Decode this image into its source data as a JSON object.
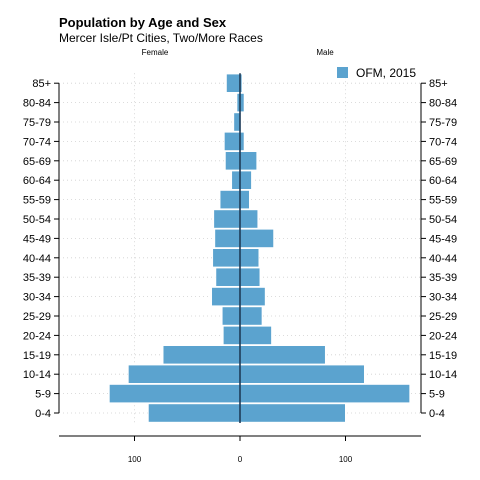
{
  "chart_data": {
    "type": "bar",
    "orientation": "horizontal",
    "title": "Population by Age and Sex",
    "subtitle": "Mercer Isle/Pt Cities, Two/More Races",
    "left_group_label": "Female",
    "right_group_label": "Male",
    "categories": [
      "0-4",
      "5-9",
      "10-14",
      "15-19",
      "20-24",
      "25-29",
      "30-34",
      "35-39",
      "40-44",
      "45-49",
      "50-54",
      "55-59",
      "60-64",
      "65-69",
      "70-74",
      "75-79",
      "80-84",
      "85+"
    ],
    "series": [
      {
        "name": "OFM, 2015",
        "female": [
          87,
          124,
          106,
          73,
          16,
          17,
          27,
          23,
          26,
          24,
          25,
          19,
          8,
          14,
          15,
          6,
          3,
          13
        ],
        "male": [
          100,
          161,
          118,
          81,
          30,
          21,
          24,
          19,
          18,
          32,
          17,
          9,
          11,
          16,
          4,
          1,
          4,
          2
        ],
        "color": "#5ba3cf"
      }
    ],
    "x_ticks": [
      {
        "value": -100,
        "label": "100"
      },
      {
        "value": 0,
        "label": "0"
      },
      {
        "value": 100,
        "label": "100"
      }
    ],
    "xlim": [
      -170,
      170
    ],
    "grid": true,
    "legend_position": "top-right"
  }
}
